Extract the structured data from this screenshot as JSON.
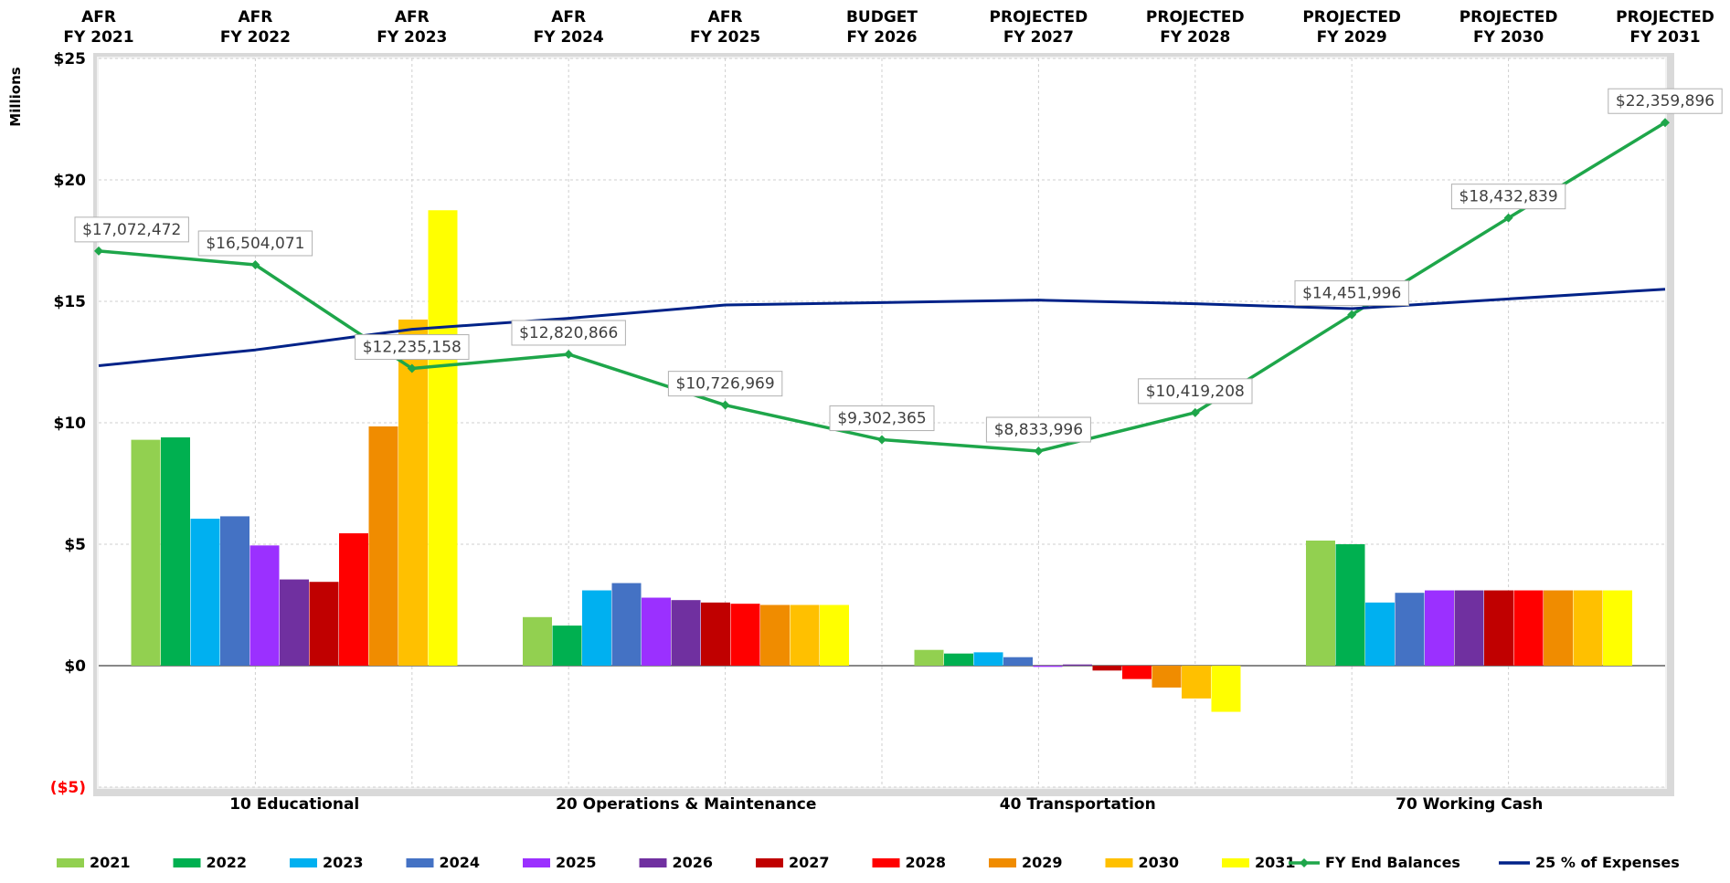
{
  "chart_data": {
    "type": "bar",
    "top_labels": [
      [
        "AFR",
        "FY 2021"
      ],
      [
        "AFR",
        "FY 2022"
      ],
      [
        "AFR",
        "FY 2023"
      ],
      [
        "AFR",
        "FY 2024"
      ],
      [
        "AFR",
        "FY 2025"
      ],
      [
        "BUDGET",
        "FY 2026"
      ],
      [
        "PROJECTED",
        "FY 2027"
      ],
      [
        "PROJECTED",
        "FY 2028"
      ],
      [
        "PROJECTED",
        "FY 2029"
      ],
      [
        "PROJECTED",
        "FY 2030"
      ],
      [
        "PROJECTED",
        "FY 2031"
      ]
    ],
    "ylabel": "Millions",
    "ylim": [
      -5,
      25
    ],
    "yticks": [
      {
        "value": 25,
        "label": "$25"
      },
      {
        "value": 20,
        "label": "$20"
      },
      {
        "value": 15,
        "label": "$15"
      },
      {
        "value": 10,
        "label": "$10"
      },
      {
        "value": 5,
        "label": "$5"
      },
      {
        "value": 0,
        "label": "$0"
      },
      {
        "value": -5,
        "label": "($5)"
      }
    ],
    "negative_tick_color": "#ff0000",
    "categories": [
      "10 Educational",
      "20 Operations & Maintenance",
      "40 Transportation",
      "70 Working Cash"
    ],
    "series": [
      {
        "name": "2021",
        "color": "#92d050",
        "values": [
          9.3,
          2.0,
          0.65,
          5.15
        ]
      },
      {
        "name": "2022",
        "color": "#00b050",
        "values": [
          9.4,
          1.65,
          0.5,
          5.0
        ]
      },
      {
        "name": "2023",
        "color": "#00b0f0",
        "values": [
          6.05,
          3.1,
          0.55,
          2.6
        ]
      },
      {
        "name": "2024",
        "color": "#4472c4",
        "values": [
          6.15,
          3.4,
          0.35,
          3.0
        ]
      },
      {
        "name": "2025",
        "color": "#9b30ff",
        "values": [
          4.95,
          2.8,
          -0.05,
          3.1
        ]
      },
      {
        "name": "2026",
        "color": "#7030a0",
        "values": [
          3.55,
          2.7,
          0.05,
          3.1
        ]
      },
      {
        "name": "2027",
        "color": "#c00000",
        "values": [
          3.45,
          2.6,
          -0.2,
          3.1
        ]
      },
      {
        "name": "2028",
        "color": "#ff0000",
        "values": [
          5.45,
          2.55,
          -0.55,
          3.1
        ]
      },
      {
        "name": "2029",
        "color": "#f08c00",
        "values": [
          9.85,
          2.5,
          -0.9,
          3.1
        ]
      },
      {
        "name": "2030",
        "color": "#ffc000",
        "values": [
          14.25,
          2.5,
          -1.35,
          3.1
        ]
      },
      {
        "name": "2031",
        "color": "#ffff00",
        "values": [
          18.75,
          2.5,
          -1.9,
          3.1
        ]
      }
    ],
    "line_series": [
      {
        "name": "FY End Balances",
        "color": "#1ea64a",
        "marker": "diamond",
        "values": [
          17.072472,
          16.504071,
          12.235158,
          12.820866,
          10.726969,
          9.302365,
          8.833996,
          10.419208,
          14.451996,
          18.432839,
          22.359896
        ],
        "labels": [
          "$17,072,472",
          "$16,504,071",
          "$12,235,158",
          "$12,820,866",
          "$10,726,969",
          "$9,302,365",
          "$8,833,996",
          "$10,419,208",
          "$14,451,996",
          "$18,432,839",
          "$22,359,896"
        ]
      },
      {
        "name": "25 % of Expenses",
        "color": "#002288",
        "marker": "none",
        "values": [
          12.35,
          13.0,
          13.85,
          14.3,
          14.85,
          14.95,
          15.05,
          14.9,
          14.7,
          15.1,
          15.5
        ]
      }
    ],
    "grid": true,
    "legend_position": "bottom"
  }
}
